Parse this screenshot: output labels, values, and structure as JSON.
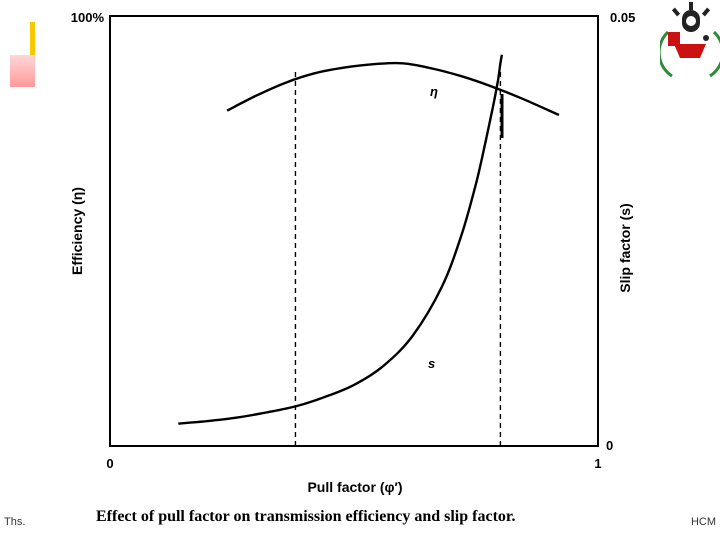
{
  "footer": {
    "left": "Ths.",
    "right": "HCM"
  },
  "caption": "Effect of pull factor on transmission efficiency and slip factor.",
  "colors": {
    "accent_yellow": "#f6c800",
    "accent_pink": "#ff9a9a",
    "logo_red": "#cc1111",
    "logo_green": "#2e8b3a"
  },
  "chart_data": {
    "type": "line",
    "title": "",
    "xlabel": "Pull factor (φ′)",
    "ylabel_left": "Efficiency (η)",
    "ylabel_right": "Slip factor (s)",
    "xlim": [
      0,
      1
    ],
    "ylim_left": [
      0,
      1
    ],
    "ylim_right": [
      0,
      0.05
    ],
    "xticks": [
      "0",
      "1"
    ],
    "yticks_left": [
      "100%"
    ],
    "yticks_right": [
      "0.05",
      "0"
    ],
    "vlines_x": [
      0.38,
      0.8
    ],
    "grid": false,
    "series": [
      {
        "name": "η",
        "axis": "left",
        "x": [
          0.24,
          0.3,
          0.36,
          0.42,
          0.48,
          0.54,
          0.6,
          0.66,
          0.72,
          0.78,
          0.84,
          0.9,
          0.92
        ],
        "y": [
          0.78,
          0.815,
          0.845,
          0.867,
          0.88,
          0.888,
          0.89,
          0.878,
          0.86,
          0.837,
          0.81,
          0.78,
          0.77
        ]
      },
      {
        "name": "s",
        "axis": "right",
        "x": [
          0.14,
          0.2,
          0.26,
          0.32,
          0.38,
          0.44,
          0.5,
          0.56,
          0.62,
          0.68,
          0.72,
          0.75,
          0.77,
          0.785,
          0.795,
          0.8,
          0.803
        ],
        "y": [
          0.0026,
          0.0029,
          0.0033,
          0.0039,
          0.0046,
          0.0057,
          0.0071,
          0.0093,
          0.0128,
          0.0185,
          0.0245,
          0.0305,
          0.0355,
          0.0395,
          0.0425,
          0.0445,
          0.0455
        ]
      }
    ]
  }
}
